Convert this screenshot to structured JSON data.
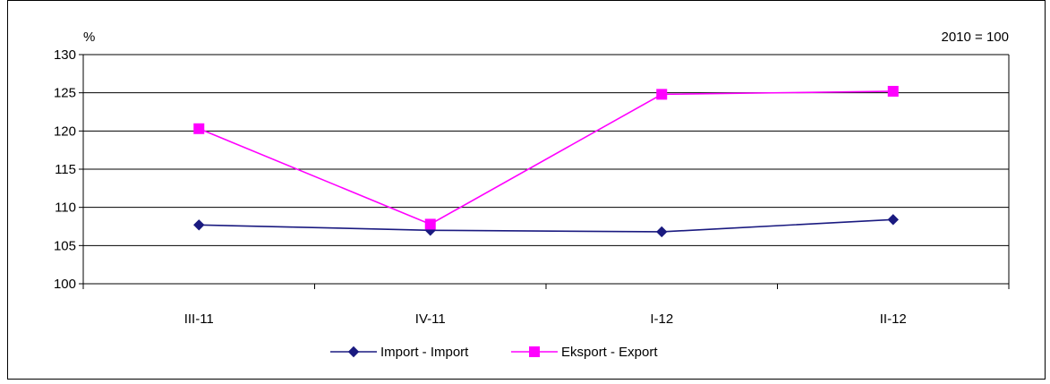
{
  "chart_data": {
    "type": "line",
    "ylabel": "%",
    "annotation": "2010 = 100",
    "ylim": [
      100,
      130
    ],
    "y_ticks": [
      100,
      105,
      110,
      115,
      120,
      125,
      130
    ],
    "categories": [
      "III-11",
      "IV-11",
      "I-12",
      "II-12"
    ],
    "series": [
      {
        "name": "Import - Import",
        "color": "#1a1a80",
        "marker": "diamond",
        "values": [
          107.7,
          107.0,
          106.8,
          108.4
        ]
      },
      {
        "name": "Eksport - Export",
        "color": "#ff00ff",
        "marker": "square",
        "values": [
          120.3,
          107.8,
          124.8,
          125.2
        ]
      }
    ],
    "grid": "horizontal",
    "legend_position": "bottom"
  }
}
